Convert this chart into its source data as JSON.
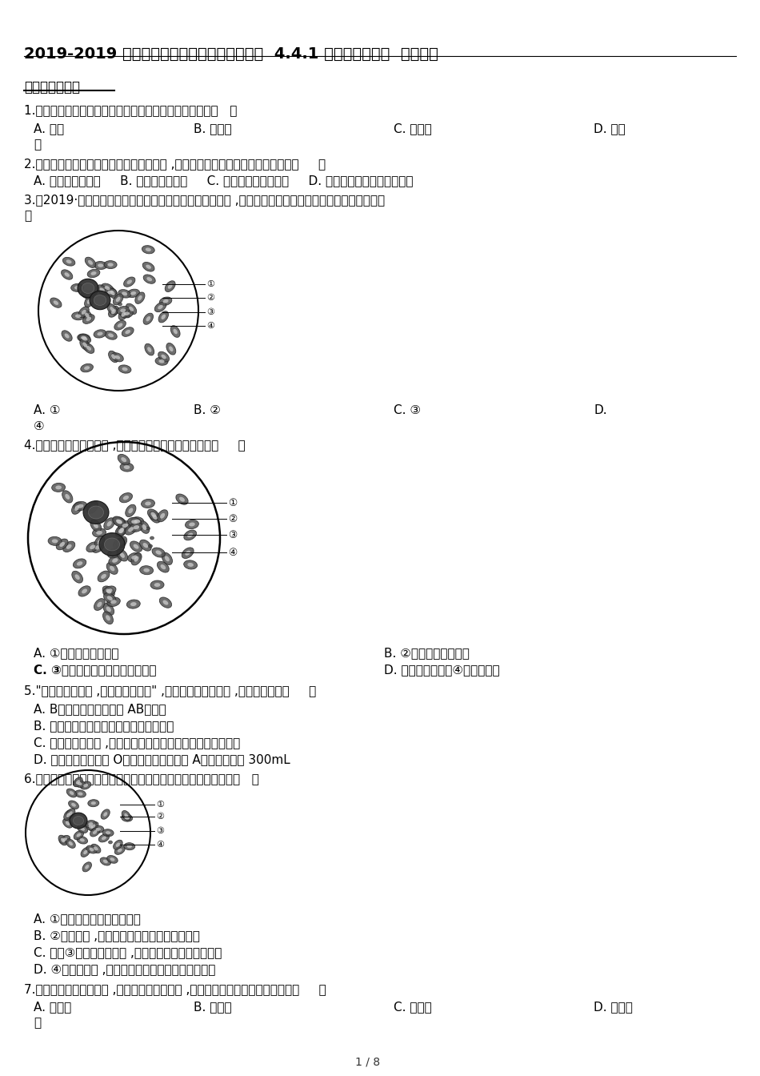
{
  "title": "2019-2019 学年鲁教版五四制七年级上册生物  4.4.1 物质运输的载体  同步测试",
  "section1": "一、单项选择题",
  "bg_color": "#ffffff",
  "q1": "1.血液中含水量最多并且与体内的物质运输有关的成分是〔   〕",
  "q1_a": "A. 血浆",
  "q1_b": "B. 红细胞",
  "q1_c": "C. 白细胞",
  "q1_d": "D. 血小",
  "q1_d2": "板",
  "q2": "2.小王最近出现面色苍白、头晕乏力等病症 ,检查发现患有贫血。你认为她应补充〔     〕",
  "q2_opts": "A. 含碘丰富的食物     B. 含钙丰富的食物     C. 含蛋白质丰富的食物     D. 含蛋白质和铁质丰富的食物",
  "q3": "3.〔2019·海南〕如图是人血涂片在显微镜下的一个视野图 ,其中数量最多、具有运输氧的功能的成分是〔",
  "q3b": "〕",
  "q3_a": "A. ①",
  "q3_b": "B. ②",
  "q3_c": "C. ③",
  "q3_d": "D.",
  "q3_d2": "④",
  "q4": "4.如图是人血涂片示意图 ,对该图的表达中错误的选项是〔     〕",
  "q4_a": "A. ①能吞噬入侵的病菌",
  "q4_b": "B. ②能运输养料和废物",
  "q4_c": "C. ③数量最多且具有运输氧的功能",
  "q4_d": "D. 输血时血型不合④会凝集成团",
  "q5": "5.\"江河让大地葱茏 ,热血使生命沸腾\" ,以下有关血液的说法 ,正确的选项是〔     〕",
  "q5_a": "A. B型血的病人可以接受 AB型的血",
  "q5_b": "B. 人体内的血浆只负着运输营养料的功能",
  "q5_c": "C. 人体出现炎症时 ,血液中的白细胞数目会增多至比红细胞多",
  "q5_d": "D. 紧急时一个健康的 O型血的成年人可以给 A型血的人献血 300mL",
  "q6": "6.如图是显微镜下看到的血涂片示意图。以下有关表达错误的是（   ）",
  "q6_a": "A. ①是三种血细胞中数最多的",
  "q6_b": "B. ②是白细胞 ,三种血细胞中只有它没有细胞核",
  "q6_c": "C. 假设③这种血细胞缺乏 ,身体一旦受伤便会血流不止",
  "q6_d": "D. ④指的是血浆 ,它具有运输营养物质和废物的功能",
  "q7": "7.某同学得了急性阑尾炎 ,到医院做血常规化验 ,该化验结果中会高于正常值的是〔     〕",
  "q7_a": "A. 血小板",
  "q7_b": "B. 红细胞",
  "q7_c": "C. 白细胞",
  "q7_d": "D. 血红蛋",
  "q7_d2": "白",
  "footer": "1 / 8"
}
